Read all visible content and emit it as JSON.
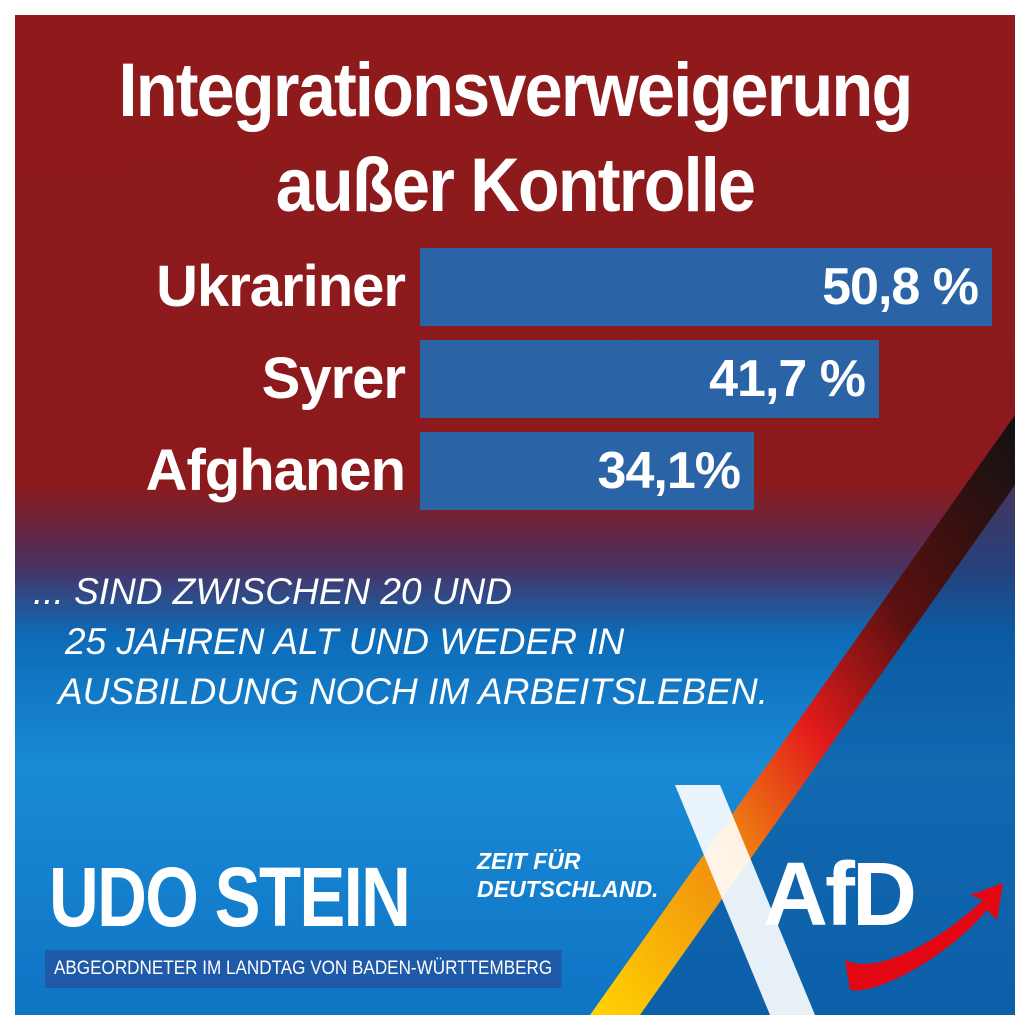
{
  "chart_data": {
    "type": "bar",
    "orientation": "horizontal",
    "title": "Integrationsverweigerung außer Kontrolle",
    "categories": [
      "Ukrariner",
      "Syrer",
      "Afghanen"
    ],
    "values": [
      50.8,
      41.7,
      34.1
    ],
    "value_labels": [
      "50,8 %",
      "41,7 %",
      "34,1%"
    ],
    "unit": "%",
    "grid": false,
    "bar_color": "#2a64a6"
  },
  "title_line1": "Integrationsverweigerung",
  "title_line2": "außer Kontrolle",
  "subtitle": [
    "... SIND ZWISCHEN 20 UND",
    "25 JAHREN ALT UND WEDER IN",
    "AUSBILDUNG NOCH IM ARBEITSLEBEN."
  ],
  "footer": {
    "name": "UDO STEIN",
    "role": "ABGEORDNETER IM LANDTAG VON BADEN-WÜRTTEMBERG",
    "slogan_line1": "ZEIT FÜR",
    "slogan_line2": "DEUTSCHLAND.",
    "logo": "AfD"
  },
  "colors": {
    "red_bg": "#8e1a1b",
    "blue_bg": "#1a8ad6",
    "arrow": "#e30613"
  }
}
